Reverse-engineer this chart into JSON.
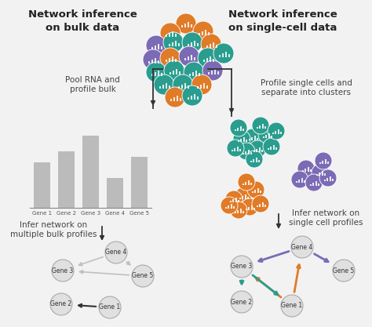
{
  "bg_color": "#f2f2f2",
  "top_left_title": "Network inference\non bulk data",
  "top_right_title": "Network inference\non single-cell data",
  "label_pool_rna": "Pool RNA and\nprofile bulk",
  "label_profile_single": "Profile single cells and\nseparate into clusters",
  "label_infer_bulk": "Infer network on\nmultiple bulk profiles",
  "label_infer_single": "Infer network on\nsingle cell profiles",
  "bar_values": [
    0.58,
    0.72,
    0.92,
    0.38,
    0.65
  ],
  "bar_labels": [
    "Gene 1",
    "Gene 2",
    "Gene 3",
    "Gene 4",
    "Gene 5"
  ],
  "bar_color": "#bbbbbb",
  "orange_color": "#e07b28",
  "teal_color": "#2a9d8f",
  "purple_color": "#7b6bb5",
  "node_color": "#e0e0e0",
  "node_edge_color": "#aaaaaa",
  "arrow_dark": "#333333",
  "arrow_gray": "#c0c0c0"
}
